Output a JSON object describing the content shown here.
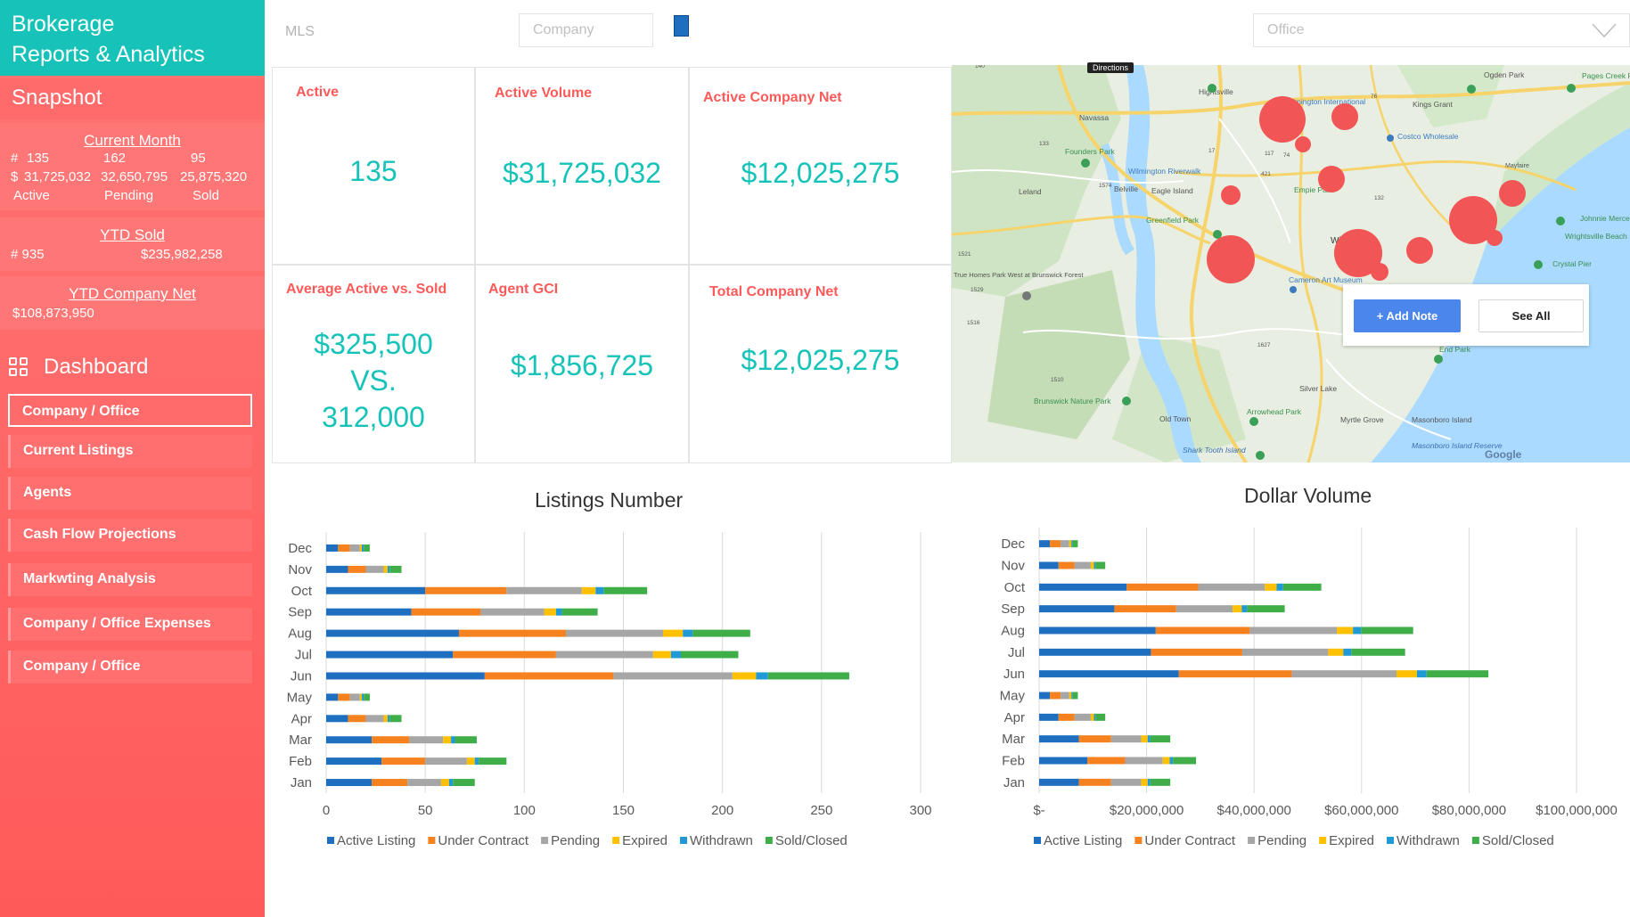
{
  "brand": {
    "line1": "Brokerage",
    "line2": "Reports & Analytics"
  },
  "snapshot": {
    "title": "Snapshot",
    "current_month": {
      "header": "Current Month",
      "count_prefix": "#",
      "active_count": "135",
      "pending_count": "162",
      "sold_count": "95",
      "dollar_prefix": "$",
      "active_volume": "31,725,032",
      "pending_volume": "32,650,795",
      "sold_volume": "25,875,320",
      "active_label": "Active",
      "pending_label": "Pending",
      "sold_label": "Sold"
    },
    "ytd_sold": {
      "header": "YTD  Sold",
      "count": "# 935",
      "amount": "$235,982,258"
    },
    "ytd_company_net": {
      "header": "YTD Company Net",
      "amount": "$108,873,950"
    }
  },
  "dashboard": {
    "title": "Dashboard",
    "nav": [
      {
        "label": "Company / Office",
        "active": true
      },
      {
        "label": "Current Listings"
      },
      {
        "label": "Agents"
      },
      {
        "label": "Cash Flow Projections"
      },
      {
        "label": "Markwting  Analysis"
      },
      {
        "label": "Company / Office  Expenses"
      },
      {
        "label": "Company / Office"
      }
    ]
  },
  "filters": {
    "mls_label": "MLS",
    "company_placeholder": "Company",
    "office_placeholder": "Office"
  },
  "kpis": {
    "active": {
      "title": "Active",
      "value": "135"
    },
    "active_volume": {
      "title": "Active Volume",
      "value": "$31,725,032"
    },
    "active_company_net": {
      "title": "Active Company Net",
      "value": "$12,025,275"
    },
    "avg_active_vs_sold": {
      "title": "Average Active vs. Sold",
      "value1": "$325,500",
      "value_vs": "VS.",
      "value2": "312,000"
    },
    "agent_gci": {
      "title": "Agent GCI",
      "value": "$1,856,725"
    },
    "total_company_net": {
      "title": "Total Company Net",
      "value": "$12,025,275"
    }
  },
  "map": {
    "add_note_label": "+ Add Note",
    "see_all_label": "See All",
    "directions_label": "Directions",
    "google_label": "Google",
    "place_labels": [
      "Navassa",
      "Hightsville",
      "Wilmington International",
      "Kings Grant",
      "Ogden Park",
      "Pages Creek Park Reserves",
      "Costco Wholesale",
      "Founders Park",
      "Wilmington Riverwalk",
      "Leland",
      "Belville",
      "Eagle Island",
      "Empie Park",
      "Mayfaire",
      "Greenfield Park",
      "Wilmington",
      "Johnnie Mercer's Pier",
      "Wrightsville Beach",
      "True Homes Park West at Brunswick Forest",
      "Cameron Art Museum",
      "Crystal Pier",
      "End Park",
      "Silver Lake",
      "Brunswick Nature Park",
      "Arrowhead Park",
      "Old Town",
      "Myrtle Grove",
      "Masonboro Island",
      "Masonboro Island Reserve",
      "Shark Tooth Island"
    ],
    "road_labels": [
      "140",
      "133",
      "17",
      "74",
      "76",
      "421",
      "132",
      "117",
      "1574",
      "1521",
      "1529",
      "1516",
      "1627",
      "1510"
    ]
  },
  "chart_data": [
    {
      "type": "bar",
      "orientation": "horizontal-stacked",
      "title": "Listings Number",
      "categories": [
        "Jan",
        "Feb",
        "Mar",
        "Apr",
        "May",
        "Jun",
        "Jul",
        "Aug",
        "Sep",
        "Oct",
        "Nov",
        "Dec"
      ],
      "series": [
        {
          "name": "Active Listing",
          "color": "#1f6fc0",
          "values": [
            23,
            28,
            23,
            11,
            6,
            80,
            64,
            67,
            43,
            50,
            11,
            6
          ]
        },
        {
          "name": "Under Contract",
          "color": "#f5821f",
          "values": [
            18,
            22,
            19,
            9,
            6,
            65,
            52,
            54,
            35,
            41,
            9,
            6
          ]
        },
        {
          "name": "Pending",
          "color": "#a6a6a6",
          "values": [
            17,
            21,
            17,
            9,
            5,
            60,
            49,
            49,
            32,
            38,
            9,
            5
          ]
        },
        {
          "name": "Expired",
          "color": "#ffc000",
          "values": [
            4,
            4,
            4,
            2,
            1,
            12,
            9,
            10,
            6,
            7,
            2,
            1
          ]
        },
        {
          "name": "Withdrawn",
          "color": "#1f9ad6",
          "values": [
            2,
            2,
            2,
            1,
            1,
            6,
            5,
            5,
            3,
            4,
            1,
            1
          ]
        },
        {
          "name": "Sold/Closed",
          "color": "#3fae49",
          "values": [
            11,
            14,
            11,
            6,
            3,
            41,
            29,
            29,
            18,
            22,
            6,
            3
          ]
        }
      ],
      "xlim": [
        0,
        300
      ],
      "xticks": [
        "0",
        "50",
        "100",
        "150",
        "200",
        "250",
        "300"
      ],
      "grid": true,
      "legend": "bottom"
    },
    {
      "type": "bar",
      "orientation": "horizontal-stacked",
      "title": "Dollar Volume",
      "categories": [
        "Jan",
        "Feb",
        "Mar",
        "Apr",
        "May",
        "Jun",
        "Jul",
        "Aug",
        "Sep",
        "Oct",
        "Nov",
        "Dec"
      ],
      "series": [
        {
          "name": "Active Listing",
          "color": "#1f6fc0",
          "values": [
            7400000,
            9000000,
            7400000,
            3600000,
            2000000,
            26000000,
            20800000,
            21700000,
            14000000,
            16300000,
            3600000,
            2000000
          ]
        },
        {
          "name": "Under Contract",
          "color": "#f5821f",
          "values": [
            6000000,
            7000000,
            6000000,
            3000000,
            2000000,
            21000000,
            17000000,
            17500000,
            11500000,
            13300000,
            3000000,
            2000000
          ]
        },
        {
          "name": "Pending",
          "color": "#a6a6a6",
          "values": [
            5600000,
            7000000,
            5600000,
            3000000,
            1600000,
            19500000,
            16000000,
            16200000,
            10500000,
            12400000,
            3000000,
            1600000
          ]
        },
        {
          "name": "Expired",
          "color": "#ffc000",
          "values": [
            1200000,
            1300000,
            1200000,
            600000,
            400000,
            3800000,
            2800000,
            3000000,
            1700000,
            2200000,
            600000,
            400000
          ]
        },
        {
          "name": "Withdrawn",
          "color": "#1f9ad6",
          "values": [
            500000,
            600000,
            500000,
            300000,
            200000,
            1800000,
            1500000,
            1500000,
            1000000,
            1200000,
            300000,
            200000
          ]
        },
        {
          "name": "Sold/Closed",
          "color": "#3fae49",
          "values": [
            3700000,
            4300000,
            3700000,
            1800000,
            1000000,
            11500000,
            10000000,
            9700000,
            7000000,
            7100000,
            1800000,
            1000000
          ]
        }
      ],
      "xlim": [
        0,
        100000000
      ],
      "xticks": [
        "$-",
        "$20,000,000",
        "$40,000,000",
        "$60,000,000",
        "$80,000,000",
        "$100,000,000"
      ],
      "grid": true,
      "legend": "bottom"
    }
  ]
}
